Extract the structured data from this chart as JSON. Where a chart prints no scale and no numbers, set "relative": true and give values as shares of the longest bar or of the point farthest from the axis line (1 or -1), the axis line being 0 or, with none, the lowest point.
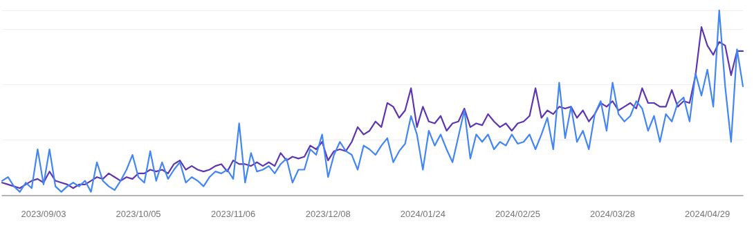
{
  "chart_data": {
    "type": "line",
    "relative": true,
    "grid": "y",
    "marker": "none",
    "line_style": "solid",
    "categories": [
      null,
      null,
      null,
      null,
      null,
      null,
      null,
      "2023/09/03",
      null,
      null,
      null,
      null,
      null,
      null,
      null,
      null,
      null,
      null,
      null,
      null,
      null,
      null,
      null,
      "2023/10/05",
      null,
      null,
      null,
      null,
      null,
      null,
      null,
      null,
      null,
      null,
      null,
      null,
      null,
      null,
      null,
      "2023/11/06",
      null,
      null,
      null,
      null,
      null,
      null,
      null,
      null,
      null,
      null,
      null,
      null,
      null,
      null,
      null,
      "2023/12/08",
      null,
      null,
      null,
      null,
      null,
      null,
      null,
      null,
      null,
      null,
      null,
      null,
      null,
      null,
      null,
      "2024/01/24",
      null,
      null,
      null,
      null,
      null,
      null,
      null,
      null,
      null,
      null,
      null,
      null,
      null,
      null,
      null,
      "2024/02/25",
      null,
      null,
      null,
      null,
      null,
      null,
      null,
      null,
      null,
      null,
      null,
      null,
      null,
      null,
      null,
      "2024/03/28",
      null,
      null,
      null,
      null,
      null,
      null,
      null,
      null,
      null,
      null,
      null,
      null,
      null,
      null,
      null,
      "2024/04/29",
      null,
      null,
      null,
      null,
      null,
      null
    ],
    "series": [
      {
        "color": "#5e35b1",
        "values": [
          0.07,
          0.06,
          0.05,
          0.04,
          0.06,
          0.08,
          0.09,
          0.07,
          0.13,
          0.08,
          0.07,
          0.06,
          0.04,
          0.06,
          0.06,
          0.08,
          0.1,
          0.09,
          0.12,
          0.1,
          0.08,
          0.1,
          0.09,
          0.12,
          0.12,
          0.14,
          0.13,
          0.14,
          0.12,
          0.17,
          0.19,
          0.14,
          0.16,
          0.14,
          0.13,
          0.14,
          0.16,
          0.17,
          0.13,
          0.19,
          0.17,
          0.17,
          0.16,
          0.18,
          0.16,
          0.18,
          0.16,
          0.23,
          0.19,
          0.21,
          0.2,
          0.21,
          0.27,
          0.25,
          0.29,
          0.19,
          0.24,
          0.25,
          0.24,
          0.29,
          0.37,
          0.33,
          0.35,
          0.4,
          0.37,
          0.5,
          0.48,
          0.42,
          0.46,
          0.58,
          0.37,
          0.48,
          0.4,
          0.39,
          0.43,
          0.35,
          0.39,
          0.4,
          0.47,
          0.37,
          0.39,
          0.38,
          0.44,
          0.4,
          0.37,
          0.39,
          0.35,
          0.39,
          0.4,
          0.43,
          0.58,
          0.42,
          0.46,
          0.44,
          0.48,
          0.47,
          0.48,
          0.42,
          0.46,
          0.4,
          0.44,
          0.5,
          0.48,
          0.51,
          0.46,
          0.48,
          0.5,
          0.47,
          0.58,
          0.5,
          0.5,
          0.48,
          0.48,
          0.57,
          0.48,
          0.51,
          0.5,
          0.65,
          0.91,
          0.81,
          0.76,
          0.83,
          0.81,
          0.65,
          0.78,
          0.78
        ]
      },
      {
        "color": "#4285f4",
        "values": [
          0.08,
          0.1,
          0.05,
          0.02,
          0.07,
          0.04,
          0.25,
          0.06,
          0.25,
          0.05,
          0.02,
          0.05,
          0.07,
          0.05,
          0.08,
          0.02,
          0.18,
          0.08,
          0.05,
          0.03,
          0.08,
          0.14,
          0.22,
          0.1,
          0.07,
          0.24,
          0.08,
          0.18,
          0.09,
          0.14,
          0.18,
          0.07,
          0.1,
          0.08,
          0.05,
          0.1,
          0.13,
          0.12,
          0.14,
          0.09,
          0.39,
          0.07,
          0.23,
          0.13,
          0.14,
          0.16,
          0.12,
          0.17,
          0.2,
          0.07,
          0.14,
          0.14,
          0.25,
          0.22,
          0.33,
          0.1,
          0.22,
          0.29,
          0.24,
          0.22,
          0.14,
          0.27,
          0.25,
          0.22,
          0.27,
          0.31,
          0.18,
          0.24,
          0.28,
          0.43,
          0.33,
          0.14,
          0.35,
          0.27,
          0.33,
          0.25,
          0.18,
          0.32,
          0.46,
          0.2,
          0.33,
          0.29,
          0.33,
          0.25,
          0.29,
          0.27,
          0.33,
          0.28,
          0.29,
          0.33,
          0.25,
          0.33,
          0.42,
          0.25,
          0.61,
          0.31,
          0.48,
          0.29,
          0.35,
          0.25,
          0.44,
          0.51,
          0.35,
          0.61,
          0.44,
          0.4,
          0.43,
          0.51,
          0.47,
          0.35,
          0.43,
          0.29,
          0.44,
          0.4,
          0.5,
          0.53,
          0.4,
          0.66,
          0.54,
          0.68,
          0.48,
          1,
          0.59,
          0.29,
          0.79,
          0.59
        ]
      }
    ]
  }
}
